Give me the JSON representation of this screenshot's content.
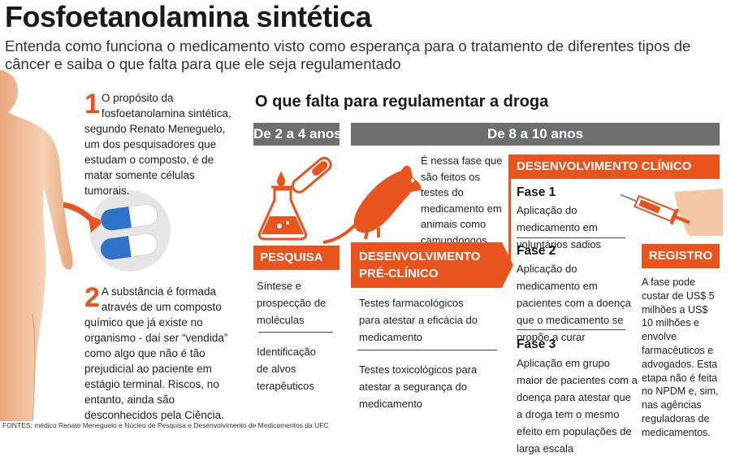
{
  "title": "Fosfoetanolamina sintética",
  "subtitle": "Entenda como funciona o medicamento visto como esperança para o tratamento de diferentes tipos de câncer e saiba o que falta para que ele seja regulamentado",
  "point1": {
    "number": "1",
    "text": "O propósito da fosfoetanolamina sintética, segundo Renato Meneguelo, um dos pesquisadores que estudam o composto, é de matar somente células tumorais."
  },
  "point2": {
    "number": "2",
    "text": "A substância é formada através de um composto químico que já existe no organismo - daí ser “vendida” como algo que não é tão prejudicial ao paciente em estágio terminal. Riscos, no entanto, ainda são desconhecidos pela Ciência."
  },
  "section_title": "O que falta para regulamentar a droga",
  "timeline": {
    "period1": "De 2 a 4 anos",
    "period2": "De 8 a 10 anos"
  },
  "pesquisa": {
    "label": "PESQUISA",
    "item1": "Síntese e prospecção de moléculas",
    "item2": "Identificação de alvos terapêuticos"
  },
  "preclinico": {
    "label_line1": "DESENVOLVIMENTO",
    "label_line2": "PRÉ-CLÍNICO",
    "note": "É nessa fase que são feitos os testes do medicamento em animais como camundongos.",
    "item1": "Testes farmacológicos para atestar a eficácia do medicamento",
    "item2": "Testes toxicológicos para atestar a segurança do medicamento"
  },
  "clinico": {
    "label": "DESENVOLVIMENTO CLÍNICO",
    "fase1": {
      "title": "Fase 1",
      "text": "Aplicação do medicamento em voluntários sadios"
    },
    "fase2": {
      "title": "Fase 2",
      "text": "Aplicação do medicamento em pacientes com a doença que o medicamento se propõe a curar"
    },
    "fase3": {
      "title": "Fase 3",
      "text": "Aplicação em grupo maior de pacientes com a doença para atestar que a droga tem o mesmo efeito em populações de larga escala"
    }
  },
  "registro": {
    "label": "REGISTRO",
    "text": "A fase pode custar de US$ 5 milhões a US$ 10 milhões e envolve farmacêuticos e advogados. Esta etapa não é feita no NPDM e, sim, nas agências reguladoras de medicamentos."
  },
  "footer": "FONTES: médico Renato Meneguelo e Núcleo de Pesquisa e Desenvolvimento de Medicamentos da UFC",
  "colors": {
    "accent": "#e8531e",
    "bar_gray": "#6d6e70",
    "skin": "#f3c8a6",
    "capsule_blue": "#2e73c8"
  },
  "icons": [
    "human-body-illustration",
    "capsules-icon",
    "flask-icon",
    "test-tube-icon",
    "rat-icon",
    "syringe-icon"
  ]
}
